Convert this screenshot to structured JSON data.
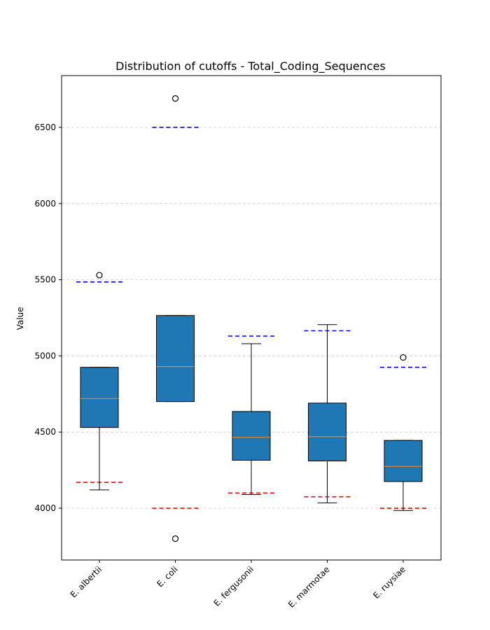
{
  "chart_data": {
    "type": "box",
    "title": "Distribution of cutoffs - Total_Coding_Sequences",
    "xlabel": "",
    "ylabel": "Value",
    "ylim": [
      3660,
      6840
    ],
    "yticks": [
      4000,
      4500,
      5000,
      5500,
      6000,
      6500
    ],
    "grid": "horizontal dashed",
    "categories": [
      "E. albertii",
      "E. coli",
      "E. fergusonii",
      "E. marmotae",
      "E. ruysiae"
    ],
    "boxes": [
      {
        "category": "E. albertii",
        "whisker_low": 4120,
        "q1": 4530,
        "median": 4720,
        "q3": 4925,
        "whisker_high": 4925,
        "outliers": [
          5530
        ],
        "lower_cutoff": 4170,
        "upper_cutoff": 5485
      },
      {
        "category": "E. coli",
        "whisker_low": 4700,
        "q1": 4700,
        "median": 4930,
        "q3": 5265,
        "whisker_high": 5265,
        "outliers": [
          6690,
          3800
        ],
        "lower_cutoff": 4000,
        "upper_cutoff": 6500
      },
      {
        "category": "E. fergusonii",
        "whisker_low": 4090,
        "q1": 4315,
        "median": 4465,
        "q3": 4635,
        "whisker_high": 5080,
        "outliers": [],
        "lower_cutoff": 4100,
        "upper_cutoff": 5130
      },
      {
        "category": "E. marmotae",
        "whisker_low": 4035,
        "q1": 4310,
        "median": 4470,
        "q3": 4690,
        "whisker_high": 5205,
        "outliers": [],
        "lower_cutoff": 4075,
        "upper_cutoff": 5165
      },
      {
        "category": "E. ruysiae",
        "whisker_low": 3985,
        "q1": 4175,
        "median": 4275,
        "q3": 4445,
        "whisker_high": 4445,
        "outliers": [
          4990
        ],
        "lower_cutoff": 4000,
        "upper_cutoff": 4925
      }
    ],
    "colors": {
      "box_fill": "#1f77b4",
      "median": "#ff7f0e",
      "lower_cutoff": "#ff0000",
      "upper_cutoff": "#0000ff",
      "grid": "#cccccc"
    }
  }
}
